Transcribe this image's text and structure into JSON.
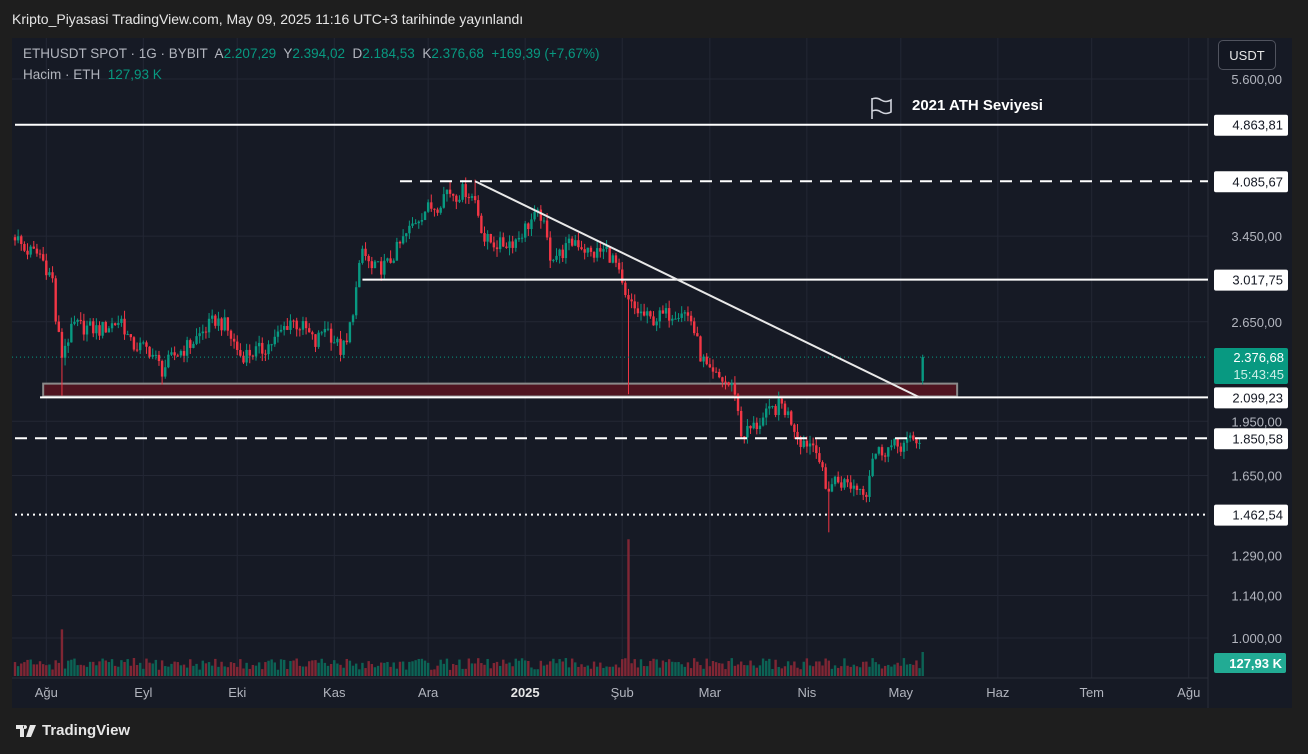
{
  "header": {
    "title": "Kripto_Piyasasi TradingView.com, May 09, 2025 11:16 UTC+3 tarihinde yayınlandı"
  },
  "legend": {
    "symbol": "ETHUSDT SPOT · 1G · BYBIT",
    "open_label": "A",
    "open": "2.207,29",
    "high_label": "Y",
    "high": "2.394,02",
    "low_label": "D",
    "low": "2.184,53",
    "close_label": "K",
    "close": "2.376,68",
    "change": "+169,39 (+7,67%)",
    "volume_label": "Hacim · ETH",
    "volume": "127,93 K"
  },
  "currency_button": "USDT",
  "annotation": {
    "text": "2021 ATH Seviyesi",
    "icon": "flag-icon"
  },
  "footer": {
    "brand": "TradingView"
  },
  "colors": {
    "up": "#089981",
    "down": "#f23645",
    "background": "#161a25",
    "zone": "#4f1420"
  },
  "chart_data": {
    "type": "candlestick",
    "symbol": "ETHUSDT",
    "y_scale": "log",
    "ylim": [
      940,
      6000
    ],
    "y_ticks": [
      {
        "value": 5600,
        "label": "5.600,00"
      },
      {
        "value": 3450,
        "label": "3.450,00"
      },
      {
        "value": 2650,
        "label": "2.650,00"
      },
      {
        "value": 1950,
        "label": "1.950,00"
      },
      {
        "value": 1650,
        "label": "1.650,00"
      },
      {
        "value": 1290,
        "label": "1.290,00"
      },
      {
        "value": 1140,
        "label": "1.140,00"
      },
      {
        "value": 1000,
        "label": "1.000,00"
      }
    ],
    "x_ticks": [
      {
        "day": 10,
        "label": "Ağu"
      },
      {
        "day": 41,
        "label": "Eyl"
      },
      {
        "day": 71,
        "label": "Eki"
      },
      {
        "day": 102,
        "label": "Kas"
      },
      {
        "day": 132,
        "label": "Ara"
      },
      {
        "day": 163,
        "label": "2025",
        "bold": true
      },
      {
        "day": 194,
        "label": "Şub"
      },
      {
        "day": 222,
        "label": "Mar"
      },
      {
        "day": 253,
        "label": "Nis"
      },
      {
        "day": 283,
        "label": "May"
      },
      {
        "day": 314,
        "label": "Haz"
      },
      {
        "day": 344,
        "label": "Tem"
      },
      {
        "day": 375,
        "label": "Ağu"
      }
    ],
    "close_path": [
      [
        0,
        3460
      ],
      [
        3,
        3306
      ],
      [
        8,
        3260
      ],
      [
        12,
        3013
      ],
      [
        13,
        2665
      ],
      [
        15,
        2391
      ],
      [
        16,
        2470
      ],
      [
        19,
        2622
      ],
      [
        27,
        2583
      ],
      [
        34,
        2665
      ],
      [
        37,
        2470
      ],
      [
        43,
        2430
      ],
      [
        47,
        2285
      ],
      [
        51,
        2391
      ],
      [
        56,
        2470
      ],
      [
        59,
        2546
      ],
      [
        64,
        2665
      ],
      [
        67,
        2622
      ],
      [
        72,
        2391
      ],
      [
        79,
        2430
      ],
      [
        83,
        2507
      ],
      [
        88,
        2665
      ],
      [
        93,
        2583
      ],
      [
        96,
        2470
      ],
      [
        99,
        2622
      ],
      [
        104,
        2430
      ],
      [
        106,
        2470
      ],
      [
        109,
        2922
      ],
      [
        111,
        3306
      ],
      [
        114,
        3108
      ],
      [
        119,
        3158
      ],
      [
        123,
        3358
      ],
      [
        128,
        3626
      ],
      [
        131,
        3741
      ],
      [
        135,
        3800
      ],
      [
        138,
        3978
      ],
      [
        141,
        3921
      ],
      [
        144,
        3978
      ],
      [
        147,
        3858
      ],
      [
        150,
        3412
      ],
      [
        155,
        3358
      ],
      [
        160,
        3412
      ],
      [
        165,
        3626
      ],
      [
        168,
        3685
      ],
      [
        171,
        3260
      ],
      [
        174,
        3260
      ],
      [
        179,
        3412
      ],
      [
        184,
        3260
      ],
      [
        189,
        3306
      ],
      [
        192,
        3158
      ],
      [
        195,
        2836
      ],
      [
        198,
        2752
      ],
      [
        203,
        2665
      ],
      [
        208,
        2708
      ],
      [
        213,
        2752
      ],
      [
        216,
        2665
      ],
      [
        219,
        2391
      ],
      [
        222,
        2248
      ],
      [
        226,
        2216
      ],
      [
        230,
        2147
      ],
      [
        232,
        1870
      ],
      [
        237,
        1928
      ],
      [
        242,
        2020
      ],
      [
        245,
        2052
      ],
      [
        248,
        1957
      ],
      [
        251,
        1841
      ],
      [
        256,
        1813
      ],
      [
        259,
        1578
      ],
      [
        262,
        1628
      ],
      [
        267,
        1602
      ],
      [
        272,
        1578
      ],
      [
        274,
        1757
      ],
      [
        277,
        1785
      ],
      [
        283,
        1813
      ],
      [
        288,
        1841
      ],
      [
        289,
        1841
      ]
    ],
    "wick_extremes": [
      {
        "day": 15,
        "low": 2110
      },
      {
        "day": 196,
        "low": 2120
      },
      {
        "day": 147,
        "high": 4107
      },
      {
        "day": 260,
        "low": 1385
      }
    ],
    "last_candle": {
      "day": 290,
      "open": 2207.29,
      "high": 2394.02,
      "low": 2184.53,
      "close": 2376.68,
      "volume": "127,93 K",
      "countdown": "15:43:45"
    },
    "volume_spikes": [
      {
        "day": 15,
        "relative": 6
      },
      {
        "day": 196,
        "relative": 14
      }
    ],
    "levels": [
      {
        "value": 4863.81,
        "label": "4.863,81",
        "style": "solid",
        "from_day": 0
      },
      {
        "value": 4085.67,
        "label": "4.085,67",
        "style": "dashed",
        "from_day": 123
      },
      {
        "value": 3017.75,
        "label": "3.017,75",
        "style": "solid",
        "from_day": 111
      },
      {
        "value": 2099.23,
        "label": "2.099,23",
        "style": "solid",
        "from_day": 8
      },
      {
        "value": 1850.58,
        "label": "1.850,58",
        "style": "dashed",
        "from_day": 0
      },
      {
        "value": 1462.54,
        "label": "1.462,54",
        "style": "dotted",
        "from_day": 0
      }
    ],
    "zone": {
      "from_day": 9,
      "to_day": 301,
      "low": 2105,
      "high": 2190
    },
    "trendline": {
      "from": {
        "day": 147,
        "price": 4085.67
      },
      "to": {
        "day": 289,
        "price": 2099.23
      }
    },
    "current_price": {
      "value": 2376.68,
      "label": "2.376,68"
    }
  }
}
